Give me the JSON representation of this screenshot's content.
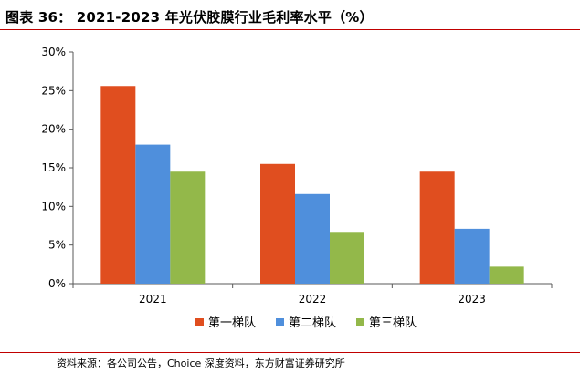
{
  "title": "图表 36： 2021-2023 年光伏胶膜行业毛利率水平（%）",
  "source": "资料来源：各公司公告，Choice 深度资料，东方财富证券研究所",
  "colors": {
    "series1": "#e04e1f",
    "series2": "#4f8fdc",
    "series3": "#93b84a",
    "accent_rule": "#c00000",
    "axis": "#595959"
  },
  "chart_data": {
    "type": "bar",
    "title": "",
    "xlabel": "",
    "ylabel": "",
    "categories": [
      "2021",
      "2022",
      "2023"
    ],
    "ylim": [
      0,
      30
    ],
    "yticks": [
      0,
      5,
      10,
      15,
      20,
      25,
      30
    ],
    "ytick_labels": [
      "0%",
      "5%",
      "10%",
      "15%",
      "20%",
      "25%",
      "30%"
    ],
    "grid": false,
    "legend_position": "bottom",
    "series": [
      {
        "name": "第一梯队",
        "values": [
          25.6,
          15.5,
          14.5
        ]
      },
      {
        "name": "第二梯队",
        "values": [
          18.0,
          11.6,
          7.1
        ]
      },
      {
        "name": "第三梯队",
        "values": [
          14.5,
          6.7,
          2.2
        ]
      }
    ]
  }
}
